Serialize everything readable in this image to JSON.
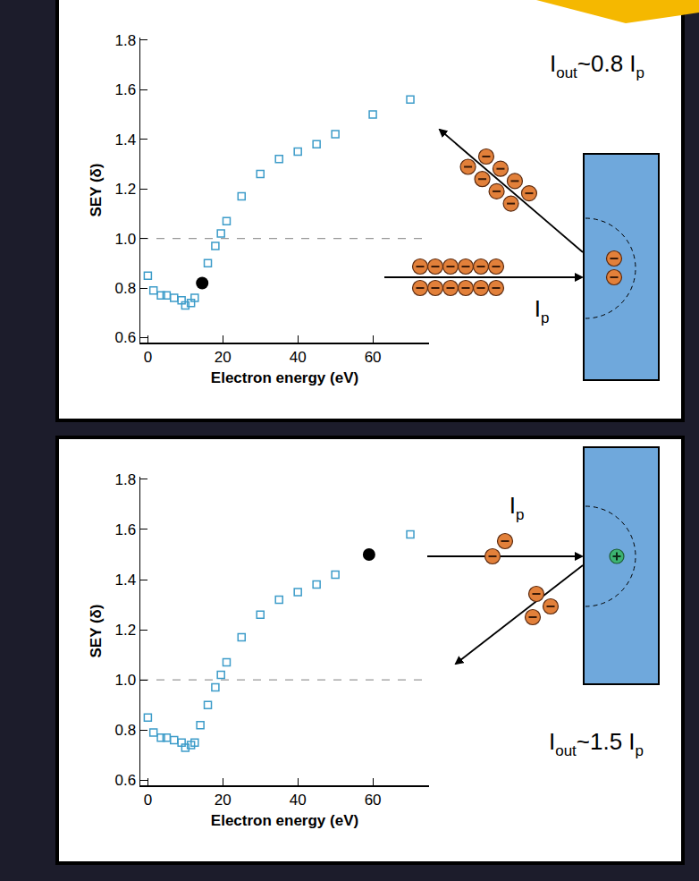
{
  "chart_data": [
    {
      "type": "scatter",
      "xlabel": "Electron energy (eV)",
      "ylabel": "SEY (δ)",
      "xlim": [
        -2,
        75
      ],
      "ylim": [
        0.58,
        1.81
      ],
      "xticks": [
        0,
        20,
        40,
        60
      ],
      "yticks": [
        0.6,
        0.8,
        {
          "value": 1,
          "label": "1.0"
        },
        1.2,
        1.4,
        1.6,
        1.8
      ],
      "grid": false,
      "series": [
        {
          "type": "line",
          "line_style": "dash",
          "color": "#999999",
          "x": [
            -2,
            75
          ],
          "values": [
            1,
            1
          ]
        },
        {
          "type": "scatter",
          "marker": "square-open",
          "color": "#3d9cc9",
          "x": [
            0,
            1.5,
            3.5,
            5,
            7,
            9,
            10,
            11.5,
            12.5,
            16,
            18,
            19.5,
            21,
            25,
            30,
            35,
            40,
            45,
            50,
            60,
            70
          ],
          "values": [
            0.85,
            0.79,
            0.77,
            0.77,
            0.76,
            0.75,
            0.73,
            0.74,
            0.76,
            0.9,
            0.97,
            1.02,
            1.07,
            1.17,
            1.26,
            1.32,
            1.35,
            1.38,
            1.42,
            1.5,
            1.56
          ]
        },
        {
          "type": "scatter",
          "marker": "circle",
          "color": "#000000",
          "x": [
            14.5
          ],
          "values": [
            0.82
          ]
        }
      ]
    },
    {
      "type": "scatter",
      "xlabel": "Electron energy (eV)",
      "ylabel": "SEY (δ)",
      "xlim": [
        -2,
        75
      ],
      "ylim": [
        0.58,
        1.81
      ],
      "xticks": [
        0,
        20,
        40,
        60
      ],
      "yticks": [
        0.6,
        0.8,
        {
          "value": 1,
          "label": "1.0"
        },
        1.2,
        1.4,
        1.6,
        1.8
      ],
      "grid": false,
      "series": [
        {
          "type": "line",
          "line_style": "dash",
          "color": "#999999",
          "x": [
            -2,
            75
          ],
          "values": [
            1,
            1
          ]
        },
        {
          "type": "scatter",
          "marker": "square-open",
          "color": "#3d9cc9",
          "x": [
            0,
            1.5,
            3.5,
            5,
            7,
            9,
            10,
            11.5,
            12.5,
            14,
            16,
            18,
            19.5,
            21,
            25,
            30,
            35,
            40,
            45,
            50,
            70
          ],
          "values": [
            0.85,
            0.79,
            0.77,
            0.77,
            0.76,
            0.75,
            0.73,
            0.74,
            0.75,
            0.82,
            0.9,
            0.97,
            1.02,
            1.07,
            1.17,
            1.26,
            1.32,
            1.35,
            1.38,
            1.42,
            1.58
          ]
        },
        {
          "type": "scatter",
          "marker": "circle",
          "color": "#000000",
          "x": [
            59
          ],
          "values": [
            1.5
          ]
        }
      ]
    }
  ],
  "diagrams": [
    {
      "output_label": [
        {
          "text": "I"
        },
        {
          "text": "out",
          "sub": true
        },
        {
          "text": "~0.8 I"
        },
        {
          "text": "p",
          "sub": true
        }
      ],
      "input_label": [
        {
          "text": "I"
        },
        {
          "text": "p",
          "sub": true
        }
      ]
    },
    {
      "output_label": [
        {
          "text": "I"
        },
        {
          "text": "out",
          "sub": true
        },
        {
          "text": "~1.5 I"
        },
        {
          "text": "p",
          "sub": true
        }
      ],
      "input_label": [
        {
          "text": "I"
        },
        {
          "text": "p",
          "sub": true
        }
      ]
    }
  ]
}
